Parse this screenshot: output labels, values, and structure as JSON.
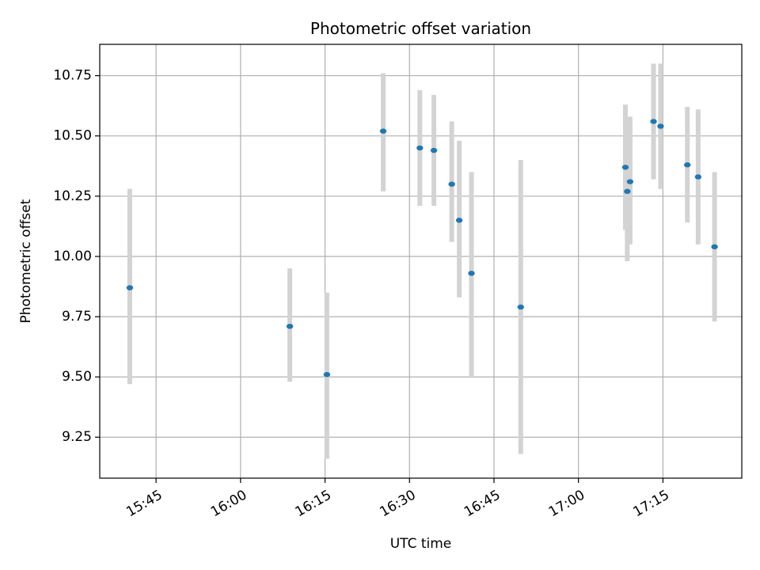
{
  "chart_data": {
    "type": "scatter",
    "title": "Photometric offset variation",
    "xlabel": "UTC time",
    "ylabel": "Photometric offset",
    "x_ticks": [
      "15:45",
      "16:00",
      "16:15",
      "16:30",
      "16:45",
      "17:00",
      "17:15"
    ],
    "y_ticks": [
      "9.25",
      "9.50",
      "9.75",
      "10.00",
      "10.25",
      "10.50",
      "10.75"
    ],
    "xlim": [
      "15:35",
      "17:29"
    ],
    "ylim": [
      9.08,
      10.88
    ],
    "grid": true,
    "colors": {
      "point": "#1f77b4",
      "errorbar": "#d3d3d3",
      "grid": "#b0b0b0"
    },
    "points": [
      {
        "x": "15:40:20",
        "y": 9.87,
        "ylow": 9.47,
        "yhigh": 10.28
      },
      {
        "x": "16:08:45",
        "y": 9.71,
        "ylow": 9.48,
        "yhigh": 9.95
      },
      {
        "x": "16:15:20",
        "y": 9.51,
        "ylow": 9.16,
        "yhigh": 9.85
      },
      {
        "x": "16:25:20",
        "y": 10.52,
        "ylow": 10.27,
        "yhigh": 10.76
      },
      {
        "x": "16:31:50",
        "y": 10.45,
        "ylow": 10.21,
        "yhigh": 10.69
      },
      {
        "x": "16:34:20",
        "y": 10.44,
        "ylow": 10.21,
        "yhigh": 10.67
      },
      {
        "x": "16:37:30",
        "y": 10.3,
        "ylow": 10.06,
        "yhigh": 10.56
      },
      {
        "x": "16:38:50",
        "y": 10.15,
        "ylow": 9.83,
        "yhigh": 10.48
      },
      {
        "x": "16:41:00",
        "y": 9.93,
        "ylow": 9.5,
        "yhigh": 10.35
      },
      {
        "x": "16:49:45",
        "y": 9.79,
        "ylow": 9.18,
        "yhigh": 10.4
      },
      {
        "x": "17:08:20",
        "y": 10.37,
        "ylow": 10.11,
        "yhigh": 10.63
      },
      {
        "x": "17:08:40",
        "y": 10.27,
        "ylow": 9.98,
        "yhigh": 10.56
      },
      {
        "x": "17:09:10",
        "y": 10.31,
        "ylow": 10.05,
        "yhigh": 10.58
      },
      {
        "x": "17:13:20",
        "y": 10.56,
        "ylow": 10.32,
        "yhigh": 10.8
      },
      {
        "x": "17:14:35",
        "y": 10.54,
        "ylow": 10.28,
        "yhigh": 10.8
      },
      {
        "x": "17:19:20",
        "y": 10.38,
        "ylow": 10.14,
        "yhigh": 10.62
      },
      {
        "x": "17:21:15",
        "y": 10.33,
        "ylow": 10.05,
        "yhigh": 10.61
      },
      {
        "x": "17:24:10",
        "y": 10.04,
        "ylow": 9.73,
        "yhigh": 10.35
      }
    ]
  }
}
